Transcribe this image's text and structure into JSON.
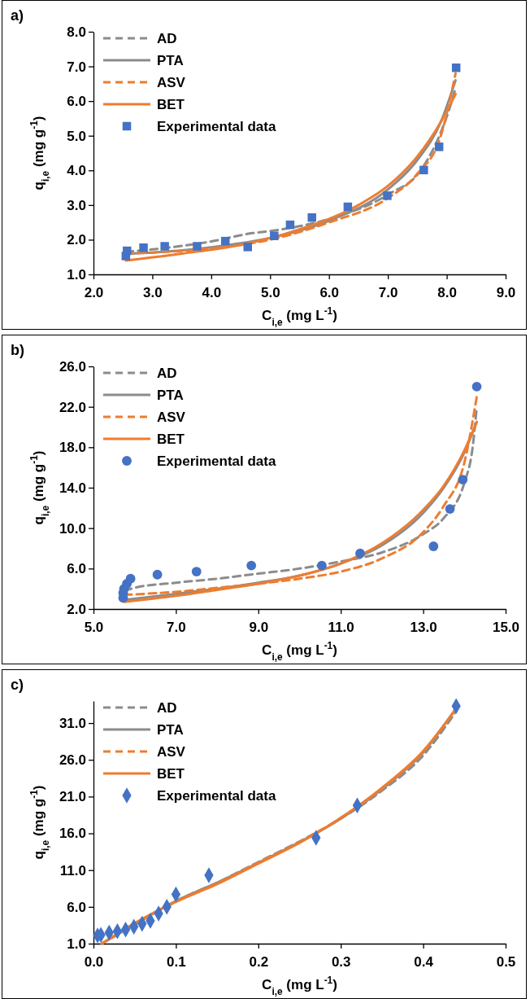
{
  "chart_data": [
    {
      "type": "line",
      "title": "a)",
      "xlabel": "C$_{i,e}$ (mg L$^{-1}$)",
      "ylabel": "q$_{i,e}$ (mg g$^{-1}$)",
      "legend": "top left",
      "grid": false,
      "xlim": [
        2,
        9
      ],
      "xticks": [
        {
          "value": 2,
          "label": "2.0"
        },
        {
          "value": 3,
          "label": "3.0"
        },
        {
          "value": 4,
          "label": "4.0"
        },
        {
          "value": 5,
          "label": "5.0"
        },
        {
          "value": 6,
          "label": "6.0"
        },
        {
          "value": 7,
          "label": "7.0"
        },
        {
          "value": 8,
          "label": "8.0"
        },
        {
          "value": 9,
          "label": "9.0"
        }
      ],
      "ylim": [
        1,
        8
      ],
      "yticks": [
        {
          "value": 1,
          "label": "1.0"
        },
        {
          "value": 2,
          "label": "2.0"
        },
        {
          "value": 3,
          "label": "3.0"
        },
        {
          "value": 4,
          "label": "4.0"
        },
        {
          "value": 5,
          "label": "5.0"
        },
        {
          "value": 6,
          "label": "6.0"
        },
        {
          "value": 7,
          "label": "7.0"
        },
        {
          "value": 8,
          "label": "8.0"
        }
      ],
      "series": [
        {
          "name": "AD",
          "type": "line",
          "line_style": "dashed",
          "marker": "none",
          "color": "#8c8c8c",
          "x": [
            2.55,
            3.0,
            4.0,
            4.7,
            5.0,
            6.0,
            7.0,
            7.57,
            7.9,
            8.05,
            8.15
          ],
          "values": [
            1.65,
            1.72,
            1.95,
            2.19,
            2.25,
            2.6,
            3.3,
            4.03,
            5.1,
            5.8,
            6.38
          ]
        },
        {
          "name": "PTA",
          "type": "line",
          "line_style": "solid",
          "marker": "none",
          "color": "#8c8c8c",
          "x": [
            2.55,
            3.0,
            4.0,
            5.0,
            6.0,
            7.0,
            7.5,
            7.9,
            8.15
          ],
          "values": [
            1.6,
            1.63,
            1.78,
            2.05,
            2.55,
            3.45,
            4.3,
            5.4,
            6.6
          ]
        },
        {
          "name": "ASV",
          "type": "line",
          "line_style": "dashed",
          "marker": "none",
          "color": "#ed7d31",
          "x": [
            2.55,
            3.0,
            4.0,
            5.0,
            6.0,
            7.0,
            7.5,
            7.9,
            8.15
          ],
          "values": [
            1.6,
            1.63,
            1.75,
            2.0,
            2.5,
            3.2,
            3.9,
            5.0,
            6.8
          ]
        },
        {
          "name": "BET",
          "type": "line",
          "line_style": "solid",
          "marker": "none",
          "color": "#ed7d31",
          "x": [
            2.55,
            3.5,
            4.5,
            5.5,
            6.5,
            7.0,
            7.5,
            7.9,
            8.15
          ],
          "values": [
            1.4,
            1.6,
            1.85,
            2.3,
            3.0,
            3.55,
            4.4,
            5.4,
            6.2
          ]
        },
        {
          "name": "Experimental data",
          "type": "scatter",
          "marker": "square",
          "color": "#4472c4",
          "x": [
            2.57,
            2.55,
            2.85,
            3.21,
            3.76,
            4.24,
            4.62,
            5.07,
            5.34,
            5.71,
            6.32,
            6.99,
            7.61,
            7.87,
            8.16
          ],
          "values": [
            1.68,
            1.53,
            1.77,
            1.81,
            1.81,
            1.96,
            1.79,
            2.11,
            2.43,
            2.64,
            2.95,
            3.27,
            4.01,
            4.68,
            6.96
          ]
        }
      ]
    },
    {
      "type": "line",
      "title": "b)",
      "xlabel": "C$_{i,e}$ (mg L$^{-1}$)",
      "ylabel": "q$_{i,e}$ (mg g$^{-1}$)",
      "legend": "top left",
      "grid": false,
      "xlim": [
        5,
        15
      ],
      "xticks": [
        {
          "value": 5,
          "label": "5.0"
        },
        {
          "value": 7,
          "label": "7.0"
        },
        {
          "value": 9,
          "label": "9.0"
        },
        {
          "value": 11,
          "label": "11.0"
        },
        {
          "value": 13,
          "label": "13.0"
        },
        {
          "value": 15,
          "label": "15.0"
        }
      ],
      "ylim": [
        2,
        26
      ],
      "yticks": [
        {
          "value": 2,
          "label": "2.0"
        },
        {
          "value": 6,
          "label": "6.0"
        },
        {
          "value": 10,
          "label": "10.0"
        },
        {
          "value": 14,
          "label": "14.0"
        },
        {
          "value": 18,
          "label": "18.0"
        },
        {
          "value": 22,
          "label": "22.0"
        },
        {
          "value": 26,
          "label": "26.0"
        }
      ],
      "series": [
        {
          "name": "AD",
          "type": "line",
          "line_style": "dashed",
          "marker": "none",
          "color": "#8c8c8c",
          "x": [
            5.75,
            6.0,
            7,
            8,
            9,
            10,
            11,
            12,
            13,
            13.5,
            14.0,
            14.2,
            14.3
          ],
          "values": [
            3.8,
            4.1,
            4.6,
            5.0,
            5.5,
            6.0,
            6.7,
            7.6,
            9.4,
            11.0,
            14.5,
            18,
            22
          ]
        },
        {
          "name": "PTA",
          "type": "line",
          "line_style": "solid",
          "marker": "none",
          "color": "#8c8c8c",
          "x": [
            5.75,
            7,
            8,
            9,
            10,
            11,
            12,
            13,
            13.5,
            14.0,
            14.3
          ],
          "values": [
            2.9,
            3.5,
            4.0,
            4.6,
            5.3,
            6.5,
            8.3,
            11.5,
            14.0,
            17.5,
            20.5
          ]
        },
        {
          "name": "ASV",
          "type": "line",
          "line_style": "dashed",
          "marker": "none",
          "color": "#ed7d31",
          "x": [
            5.75,
            7,
            8,
            9,
            10,
            11,
            12,
            13,
            13.5,
            14.0,
            14.3
          ],
          "values": [
            3.4,
            3.7,
            4.1,
            4.5,
            5.0,
            5.7,
            7.0,
            9.6,
            12.2,
            16.5,
            23
          ]
        },
        {
          "name": "BET",
          "type": "line",
          "line_style": "solid",
          "marker": "none",
          "color": "#ed7d31",
          "x": [
            5.75,
            7,
            8,
            9,
            10,
            11,
            12,
            13,
            13.5,
            14.0,
            14.3
          ],
          "values": [
            2.7,
            3.3,
            3.9,
            4.5,
            5.3,
            6.5,
            8.5,
            11.8,
            14.2,
            17.7,
            20.5
          ]
        },
        {
          "name": "Experimental data",
          "type": "scatter",
          "marker": "circle",
          "color": "#4472c4",
          "x": [
            5.72,
            5.72,
            5.74,
            5.81,
            5.9,
            6.55,
            7.5,
            8.83,
            10.54,
            11.47,
            13.25,
            13.65,
            13.96,
            14.3
          ],
          "values": [
            3.1,
            3.6,
            4.0,
            4.5,
            5.0,
            5.4,
            5.7,
            6.3,
            6.3,
            7.5,
            8.2,
            11.9,
            14.8,
            24.0
          ]
        }
      ]
    },
    {
      "type": "line",
      "title": "c)",
      "xlabel": "C$_{i,e}$ (mg L$^{-1}$)",
      "ylabel": "q$_{i,e}$ (mg g$^{-1}$)",
      "legend": "top left",
      "grid": false,
      "xlim": [
        0,
        0.5
      ],
      "xticks": [
        {
          "value": 0,
          "label": "0.0"
        },
        0.1,
        0.2,
        0.3,
        0.4,
        0.5
      ],
      "ylim": [
        1,
        34
      ],
      "yticks": [
        {
          "value": 1,
          "label": "1.0"
        },
        {
          "value": 6,
          "label": "6.0"
        },
        {
          "value": 11,
          "label": "11.0"
        },
        {
          "value": 16,
          "label": "16.0"
        },
        {
          "value": 21,
          "label": "21.0"
        },
        {
          "value": 26,
          "label": "26.0"
        },
        {
          "value": 31,
          "label": "31.0"
        }
      ],
      "series": [
        {
          "name": "AD",
          "type": "line",
          "line_style": "dashed",
          "marker": "none",
          "color": "#8c8c8c",
          "x": [
            0.01,
            0.05,
            0.1,
            0.15,
            0.2,
            0.25,
            0.3,
            0.35,
            0.4,
            0.44
          ],
          "values": [
            1.0,
            3.6,
            6.8,
            9.3,
            12.1,
            14.9,
            18.0,
            21.8,
            26.6,
            32.6
          ]
        },
        {
          "name": "PTA",
          "type": "line",
          "line_style": "solid",
          "marker": "none",
          "color": "#8c8c8c",
          "x": [
            0.01,
            0.05,
            0.1,
            0.15,
            0.2,
            0.25,
            0.3,
            0.35,
            0.4,
            0.44
          ],
          "values": [
            1.0,
            3.6,
            6.8,
            9.3,
            12.0,
            14.8,
            18.0,
            22.0,
            27.0,
            33.0
          ]
        },
        {
          "name": "ASV",
          "type": "line",
          "line_style": "dashed",
          "marker": "none",
          "color": "#ed7d31",
          "x": [
            0.01,
            0.05,
            0.1,
            0.15,
            0.2,
            0.25,
            0.3,
            0.35,
            0.4,
            0.44
          ],
          "values": [
            1.0,
            3.7,
            6.7,
            9.2,
            12.0,
            14.8,
            18.1,
            22.1,
            27.1,
            33.0
          ]
        },
        {
          "name": "BET",
          "type": "line",
          "line_style": "solid",
          "marker": "none",
          "color": "#ed7d31",
          "x": [
            0.01,
            0.05,
            0.1,
            0.15,
            0.2,
            0.25,
            0.3,
            0.35,
            0.4,
            0.44
          ],
          "values": [
            1.0,
            3.8,
            6.7,
            9.1,
            11.9,
            14.7,
            18.1,
            22.2,
            27.2,
            33.0
          ]
        },
        {
          "name": "Experimental data",
          "type": "scatter",
          "marker": "diamond",
          "color": "#4472c4",
          "x": [
            0.005,
            0.009,
            0.019,
            0.029,
            0.039,
            0.049,
            0.059,
            0.069,
            0.079,
            0.089,
            0.1,
            0.14,
            0.27,
            0.32,
            0.44
          ],
          "values": [
            2.1,
            2.2,
            2.5,
            2.7,
            2.9,
            3.3,
            3.7,
            4.1,
            5.1,
            6.0,
            7.7,
            10.3,
            15.4,
            19.8,
            33.3
          ]
        }
      ]
    }
  ]
}
